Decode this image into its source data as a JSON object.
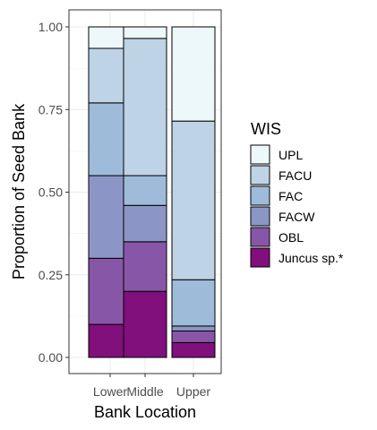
{
  "chart_data": {
    "type": "bar",
    "stacked": true,
    "categories": [
      "Lower",
      "Middle",
      "Upper"
    ],
    "xlabel": "Bank Location",
    "ylabel": "Proportion of Seed Bank",
    "ylim": [
      0,
      1
    ],
    "yticks": [
      "0.00",
      "0.25",
      "0.50",
      "0.75",
      "1.00"
    ],
    "ytick_values": [
      0,
      0.25,
      0.5,
      0.75,
      1.0
    ],
    "grid": true,
    "legend": {
      "title": "WIS",
      "placement": "right"
    },
    "series": [
      {
        "name": "Juncus sp.*",
        "color": "#810f7c",
        "values": [
          0.1,
          0.2,
          0.045
        ]
      },
      {
        "name": "OBL",
        "color": "#8856a7",
        "values": [
          0.2,
          0.15,
          0.035
        ]
      },
      {
        "name": "FACW",
        "color": "#8c96c6",
        "values": [
          0.25,
          0.11,
          0.015
        ]
      },
      {
        "name": "FAC",
        "color": "#9ebcda",
        "values": [
          0.22,
          0.09,
          0.14
        ]
      },
      {
        "name": "FACU",
        "color": "#bfd3e6",
        "values": [
          0.165,
          0.415,
          0.48
        ]
      },
      {
        "name": "UPL",
        "color": "#edf8fb",
        "values": [
          0.065,
          0.035,
          0.285
        ]
      }
    ],
    "legend_order": [
      "UPL",
      "FACU",
      "FAC",
      "FACW",
      "OBL",
      "Juncus sp.*"
    ]
  }
}
